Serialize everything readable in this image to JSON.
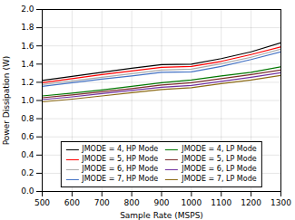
{
  "chart_data": {
    "type": "line",
    "x": [
      500,
      600,
      700,
      800,
      900,
      1000,
      1100,
      1200,
      1300
    ],
    "series": [
      {
        "name": "JMODE = 4, HP Mode",
        "color": "#000000",
        "values": [
          1.22,
          1.265,
          1.31,
          1.355,
          1.395,
          1.4,
          1.46,
          1.535,
          1.635
        ]
      },
      {
        "name": "JMODE = 5, HP Mode",
        "color": "#ff0000",
        "values": [
          1.195,
          1.24,
          1.285,
          1.325,
          1.365,
          1.375,
          1.43,
          1.505,
          1.59
        ]
      },
      {
        "name": "JMODE = 6, HP Mode",
        "color": "#aaaaaa",
        "values": [
          1.175,
          1.215,
          1.255,
          1.295,
          1.335,
          1.345,
          1.405,
          1.475,
          1.565
        ]
      },
      {
        "name": "JMODE = 7, HP Mode",
        "color": "#4472c4",
        "values": [
          1.155,
          1.195,
          1.235,
          1.27,
          1.31,
          1.315,
          1.375,
          1.45,
          1.535
        ]
      },
      {
        "name": "JMODE = 4, LP Mode",
        "color": "#007700",
        "values": [
          1.05,
          1.08,
          1.115,
          1.155,
          1.195,
          1.225,
          1.27,
          1.31,
          1.37
        ]
      },
      {
        "name": "JMODE = 5, LP Mode",
        "color": "#7b2c2c",
        "values": [
          1.03,
          1.06,
          1.095,
          1.13,
          1.17,
          1.195,
          1.24,
          1.285,
          1.335
        ]
      },
      {
        "name": "JMODE = 6, LP Mode",
        "color": "#7030a0",
        "values": [
          1.01,
          1.04,
          1.075,
          1.11,
          1.145,
          1.165,
          1.21,
          1.255,
          1.305
        ]
      },
      {
        "name": "JMODE = 7, LP Mode",
        "color": "#8b6914",
        "values": [
          0.985,
          1.015,
          1.05,
          1.085,
          1.12,
          1.14,
          1.185,
          1.225,
          1.275
        ]
      }
    ],
    "xlabel": "Sample Rate (MSPS)",
    "ylabel": "Power Dissipation (W)",
    "xlim": [
      500,
      1300
    ],
    "ylim": [
      0,
      2
    ],
    "xticks": [
      500,
      600,
      700,
      800,
      900,
      1000,
      1100,
      1200,
      1300
    ],
    "yticks": [
      {
        "value": 0,
        "label": "0.0"
      },
      0.2,
      0.4,
      0.6,
      0.8,
      {
        "value": 1.0,
        "label": "1.0"
      },
      1.2,
      1.4,
      1.6,
      1.8,
      {
        "value": 2.0,
        "label": "2.0"
      }
    ],
    "grid": true,
    "legend": "lower center"
  }
}
